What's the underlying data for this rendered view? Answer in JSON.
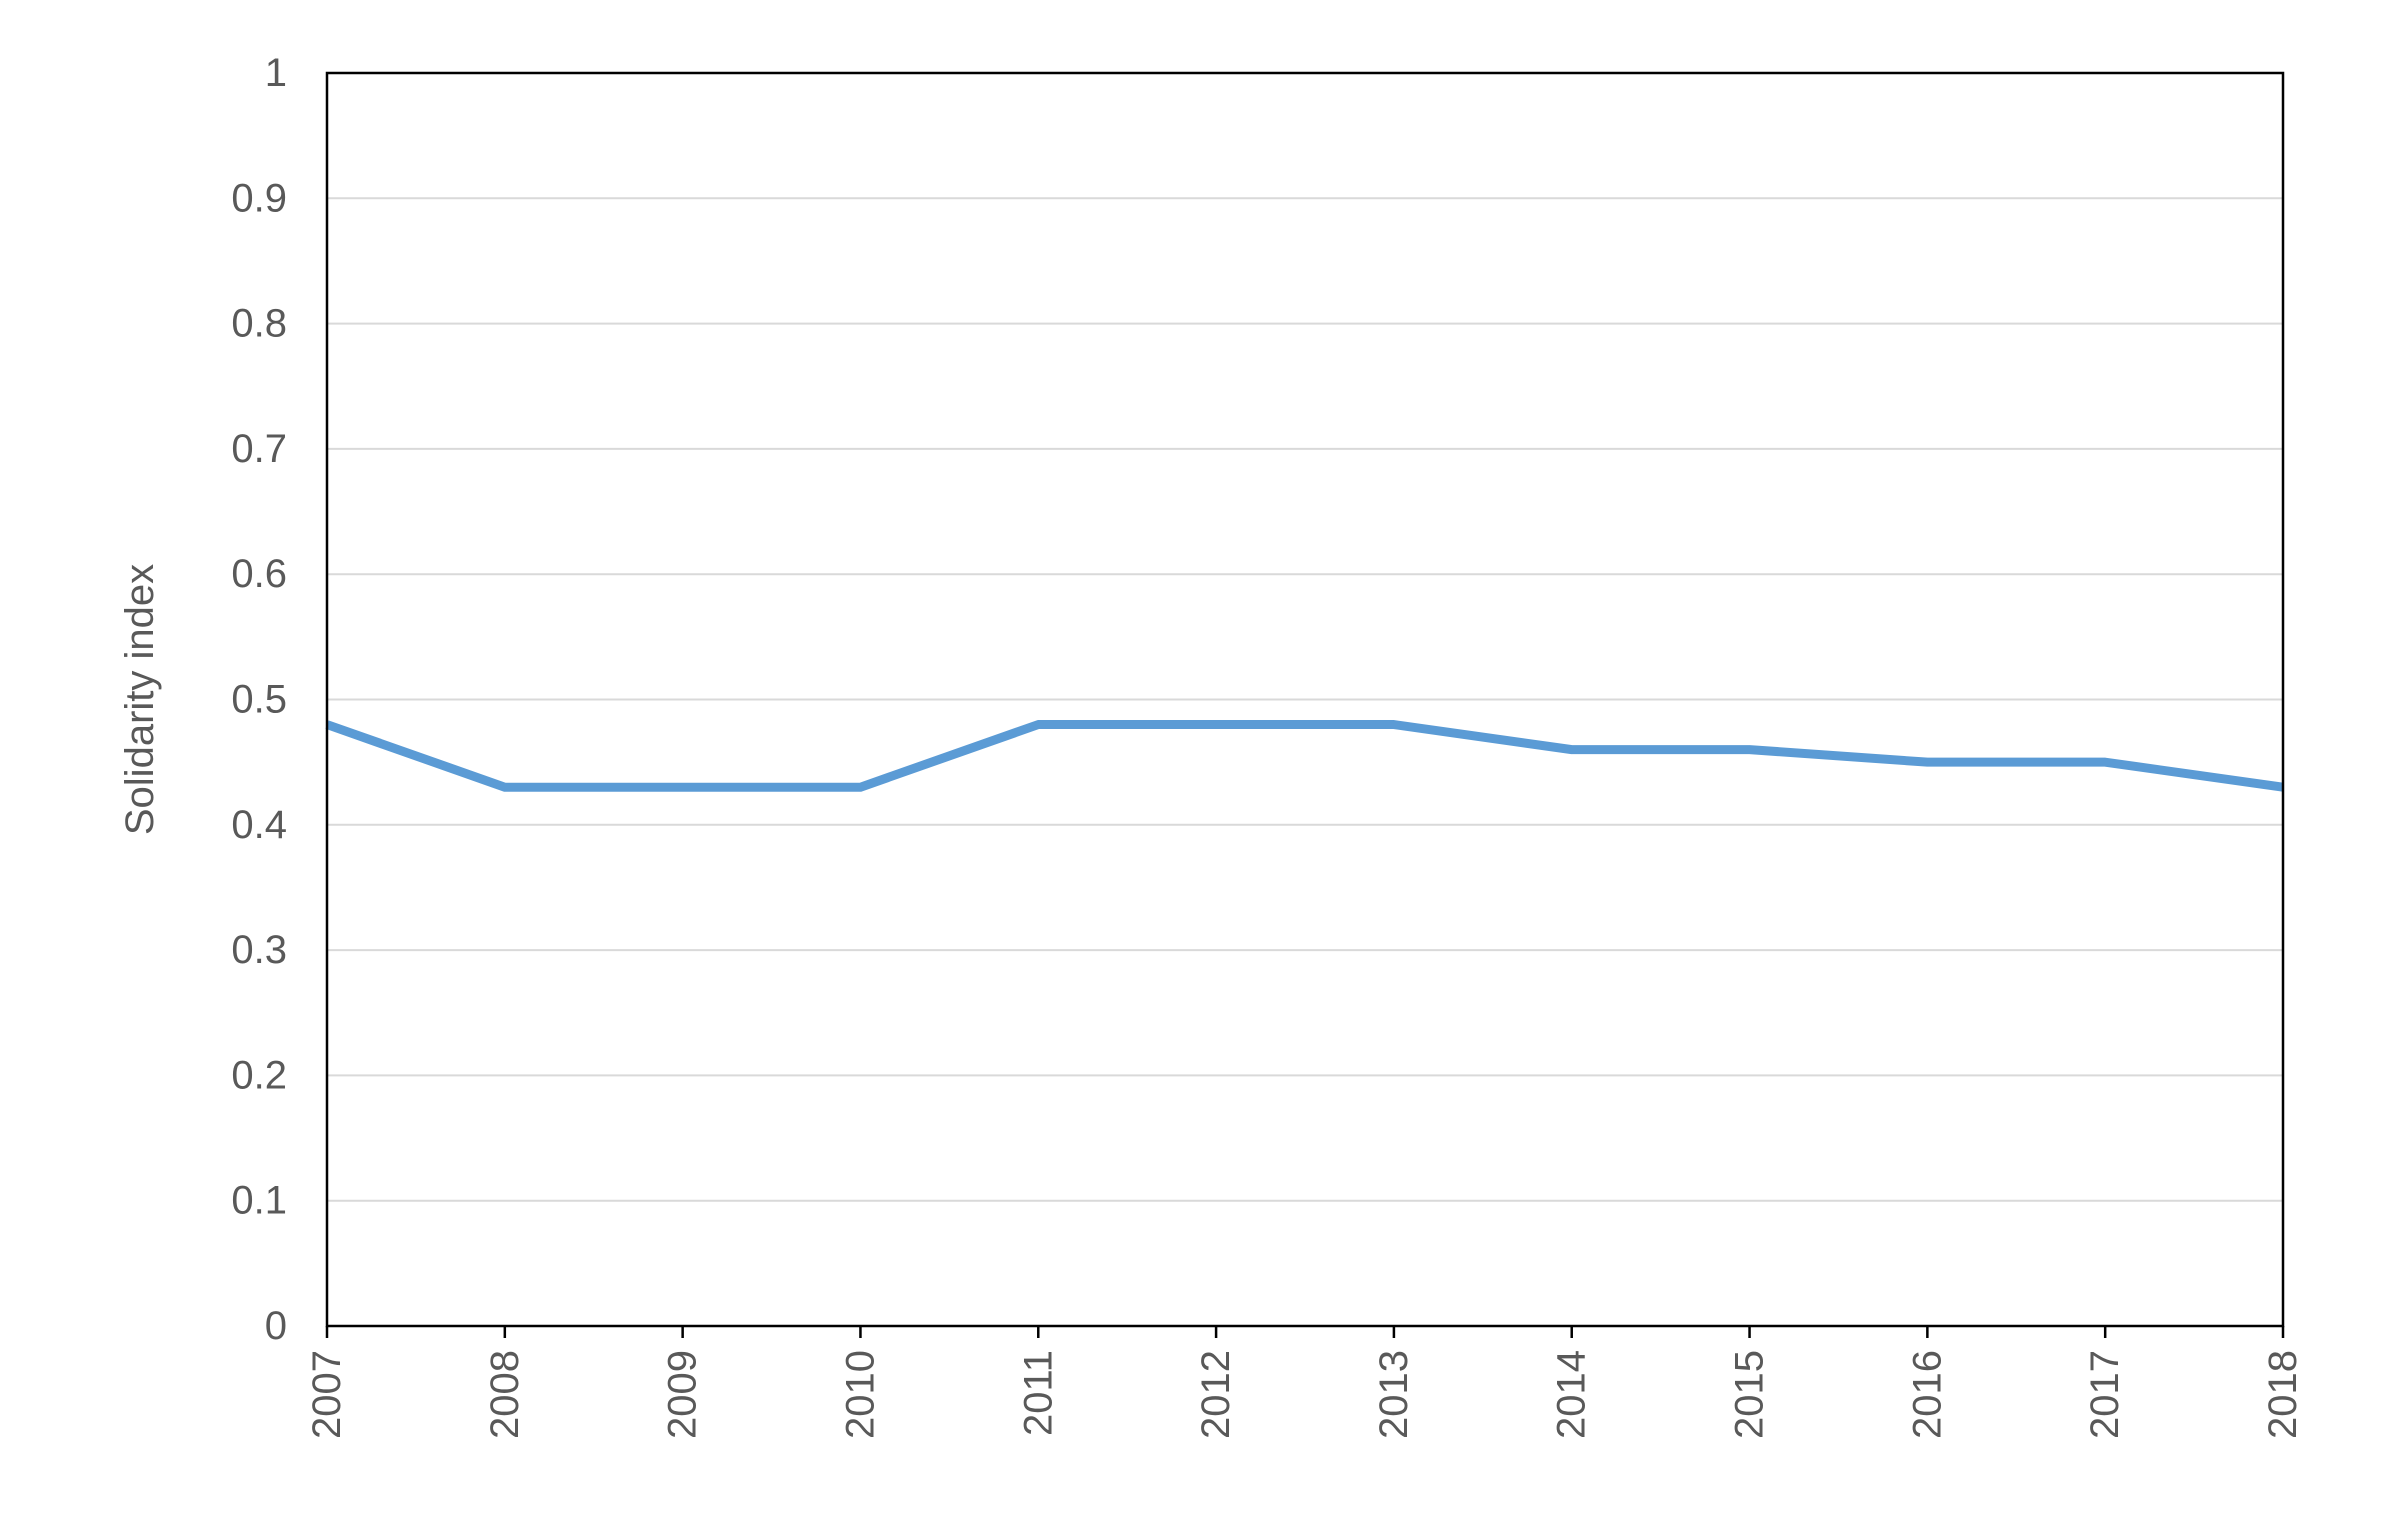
{
  "chart_data": {
    "type": "line",
    "title": "",
    "xlabel": "",
    "ylabel": "Solidarity index",
    "x": [
      "2007",
      "2008",
      "2009",
      "2010",
      "2011",
      "2012",
      "2013",
      "2014",
      "2015",
      "2016",
      "2017",
      "2018"
    ],
    "series": [
      {
        "values": [
          0.48,
          0.43,
          0.43,
          0.43,
          0.48,
          0.48,
          0.48,
          0.46,
          0.46,
          0.45,
          0.45,
          0.43
        ],
        "color": "#5B9BD5"
      }
    ],
    "ylim": [
      0,
      1
    ],
    "yticks": [
      0,
      0.1,
      0.2,
      0.3,
      0.4,
      0.5,
      0.6,
      0.7,
      0.8,
      0.9,
      1
    ],
    "ytick_labels": [
      "0",
      "0.1",
      "0.2",
      "0.3",
      "0.4",
      "0.5",
      "0.6",
      "0.7",
      "0.8",
      "0.9",
      "1"
    ],
    "grid": true,
    "grid_color": "#D9D9D9",
    "frame_color": "#000000",
    "text_color": "#595959",
    "legend": "none"
  }
}
